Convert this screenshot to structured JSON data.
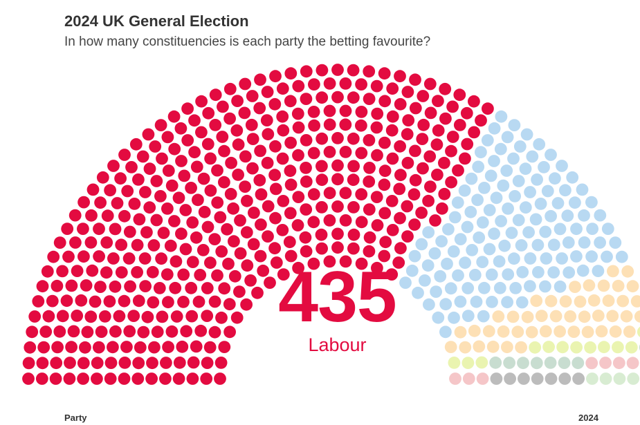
{
  "header": {
    "title": "2024 UK General Election",
    "subtitle": "In how many constituencies is each party the betting favourite?"
  },
  "highlight": {
    "value": "435",
    "party": "Labour"
  },
  "footer": {
    "left_label": "Party",
    "right_label": "2024"
  },
  "chart_data": {
    "type": "parliament",
    "total_seats": 650,
    "series": [
      {
        "name": "Labour",
        "value": 435,
        "color": "#e30b40"
      },
      {
        "value": 130,
        "color": "#b8d9f2"
      },
      {
        "value": 45,
        "color": "#fde0b5"
      },
      {
        "value": 12,
        "color": "#eaf4b0"
      },
      {
        "value": 8,
        "color": "#c8ddd0"
      },
      {
        "value": 8,
        "color": "#f5c6c8"
      },
      {
        "value": 7,
        "color": "#bcbcbc"
      },
      {
        "value": 5,
        "color": "#d8ecd2"
      }
    ]
  }
}
